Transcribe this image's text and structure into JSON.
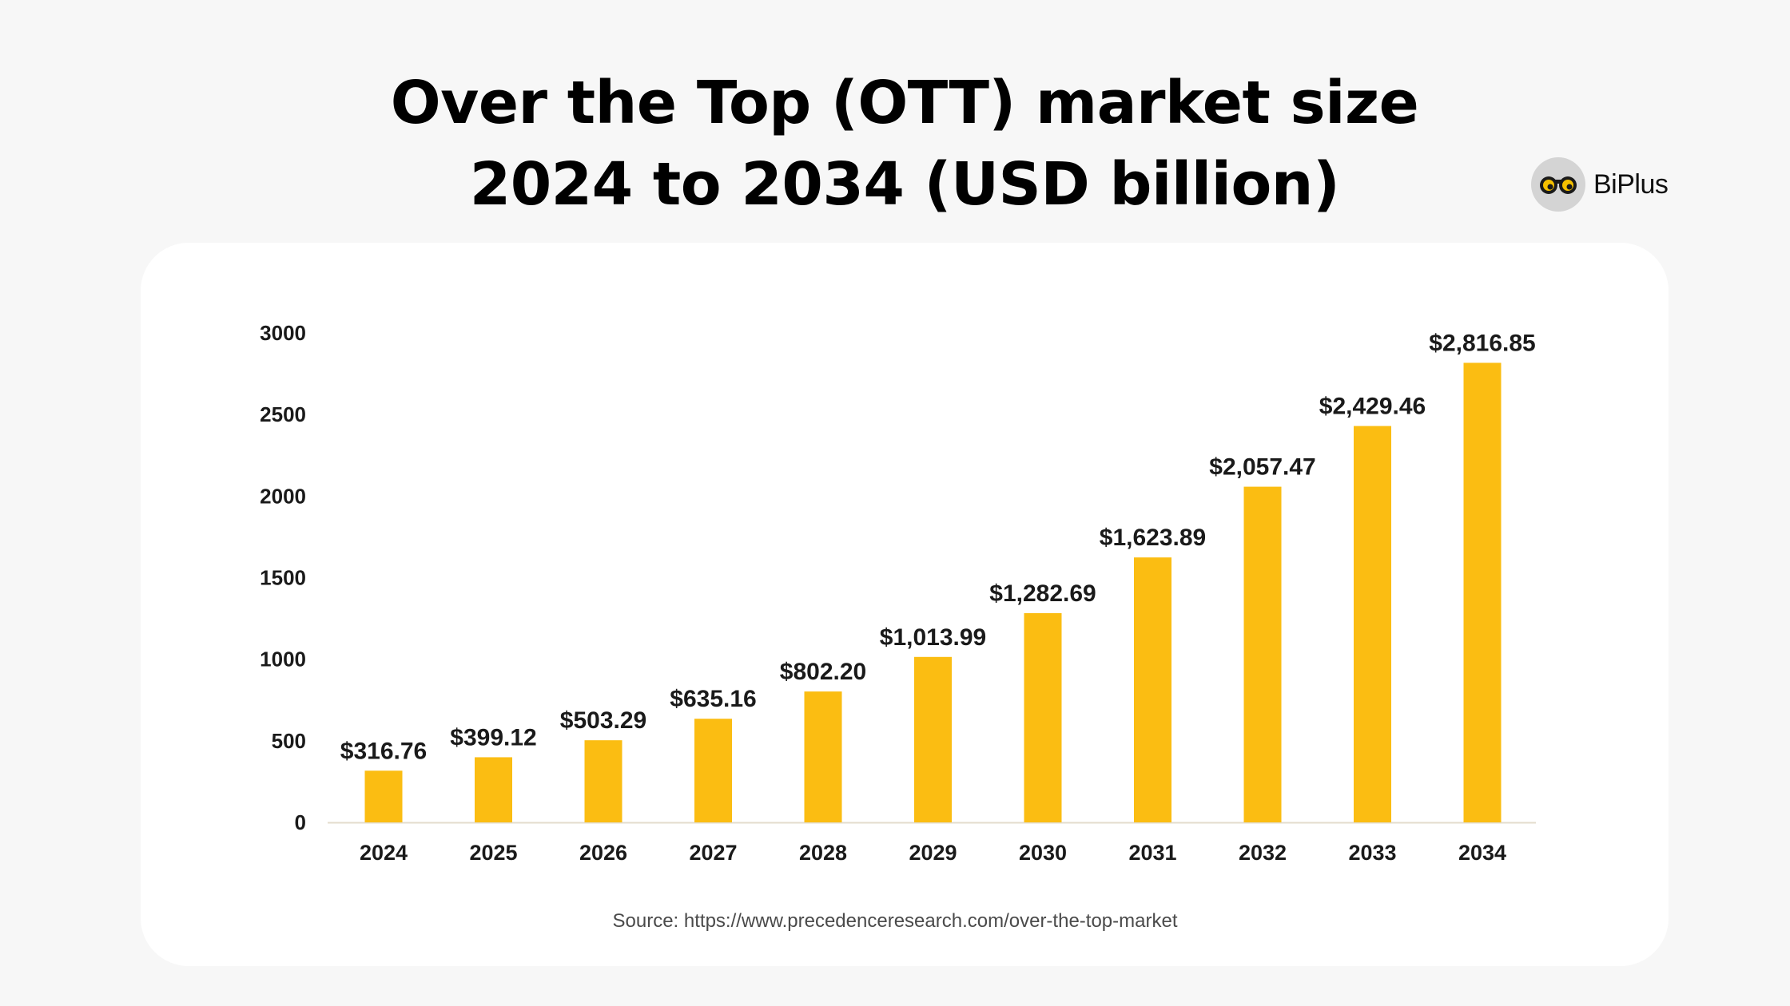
{
  "header": {
    "title_line1": "Over the Top (OTT) market size",
    "title_line2": "2024 to 2034 (USD billion)"
  },
  "brand": {
    "name": "BiPlus",
    "logo_icon": "owl-eyes-icon",
    "accent": "#f5c000"
  },
  "colors": {
    "bar": "#fbbd12",
    "axis": "#e3dccc",
    "text": "#1a1a1a",
    "background": "#f7f7f7",
    "card": "#ffffff"
  },
  "chart_data": {
    "type": "bar",
    "categories": [
      "2024",
      "2025",
      "2026",
      "2027",
      "2028",
      "2029",
      "2030",
      "2031",
      "2032",
      "2033",
      "2034"
    ],
    "values": [
      316.76,
      399.12,
      503.29,
      635.16,
      802.2,
      1013.99,
      1282.69,
      1623.89,
      2057.47,
      2429.46,
      2816.85
    ],
    "data_labels": [
      "$316.76",
      "$399.12",
      "$503.29",
      "$635.16",
      "$802.20",
      "$1,013.99",
      "$1,282.69",
      "$1,623.89",
      "$2,057.47",
      "$2,429.46",
      "$2,816.85"
    ],
    "yticks": [
      "0",
      "500",
      "1000",
      "1500",
      "2000",
      "2500",
      "3000"
    ],
    "ylim": [
      0,
      3000
    ],
    "grid": false,
    "legend": "none"
  },
  "source": "Source: https://www.precedenceresearch.com/over-the-top-market"
}
